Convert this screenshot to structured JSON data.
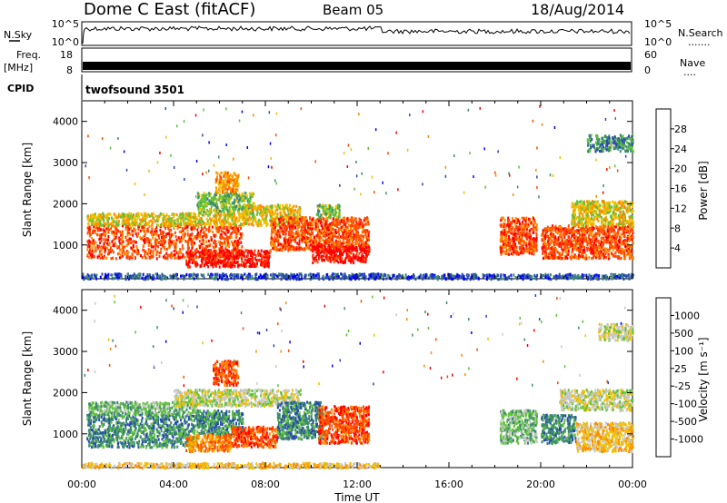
{
  "header": {
    "title": "Dome C East (fitACF)",
    "beam": "Beam 05",
    "date": "18/Aug/2014"
  },
  "noise_panel": {
    "left_label": "N.Sky",
    "right_label": "N.Search",
    "tick_top": "10^5",
    "tick_bottom": "10^0",
    "legend_dots": "......."
  },
  "freq_panel": {
    "left_label_1": "Freq.",
    "left_label_2": "[MHz]",
    "right_label": "Nave",
    "left_ticks": [
      "18",
      "8"
    ],
    "right_ticks": [
      "60",
      "0"
    ],
    "legend_dots": "...."
  },
  "cpid": {
    "label": "CPID",
    "value": "twofsound 3501"
  },
  "chart_data": [
    {
      "type": "heatmap",
      "name": "power",
      "ylabel": "Slant Range [km]",
      "xlabel": "Time UT",
      "x_ticks": [
        "00:00",
        "04:00",
        "08:00",
        "12:00",
        "16:00",
        "20:00",
        "00:00"
      ],
      "x_range_hours": [
        0,
        24
      ],
      "y_ticks": [
        1000,
        2000,
        3000,
        4000
      ],
      "y_range_km": [
        180,
        4500
      ],
      "colorbar": {
        "label": "Power [dB]",
        "ticks": [
          "28",
          "24",
          "20",
          "16",
          "12",
          "8",
          "4"
        ],
        "colors": [
          "#0000ff",
          "#2a4ab0",
          "#3d8a70",
          "#5fc23a",
          "#f0c000",
          "#ff8a00",
          "#ff4a00",
          "#ff0000"
        ]
      },
      "echo_regions": [
        {
          "t0": 0.2,
          "t1": 7.0,
          "r0": 700,
          "r1": 1500,
          "level": 6
        },
        {
          "t0": 0.2,
          "t1": 7.0,
          "r0": 1500,
          "r1": 1800,
          "level": 4
        },
        {
          "t0": 4.5,
          "t1": 8.2,
          "r0": 500,
          "r1": 900,
          "level": 7
        },
        {
          "t0": 5.0,
          "t1": 7.5,
          "r0": 1800,
          "r1": 2300,
          "level": 3
        },
        {
          "t0": 5.8,
          "t1": 6.8,
          "r0": 2300,
          "r1": 2800,
          "level": 5
        },
        {
          "t0": 7.0,
          "t1": 9.5,
          "r0": 1500,
          "r1": 2000,
          "level": 4
        },
        {
          "t0": 8.2,
          "t1": 12.5,
          "r0": 900,
          "r1": 1700,
          "level": 6
        },
        {
          "t0": 10.0,
          "t1": 12.5,
          "r0": 600,
          "r1": 1000,
          "level": 7
        },
        {
          "t0": 10.2,
          "t1": 11.2,
          "r0": 1700,
          "r1": 2000,
          "level": 3
        },
        {
          "t0": 18.2,
          "t1": 19.8,
          "r0": 800,
          "r1": 1700,
          "level": 6
        },
        {
          "t0": 20.0,
          "t1": 24.0,
          "r0": 700,
          "r1": 1500,
          "level": 6
        },
        {
          "t0": 21.3,
          "t1": 24.0,
          "r0": 1500,
          "r1": 2100,
          "level": 4
        },
        {
          "t0": 22.0,
          "t1": 24.0,
          "r0": 3300,
          "r1": 3700,
          "level": 2
        },
        {
          "t0": 0.0,
          "t1": 13.0,
          "r0": 200,
          "r1": 330,
          "level": 1
        },
        {
          "t0": 12.5,
          "t1": 24.0,
          "r0": 200,
          "r1": 320,
          "level": 1
        }
      ]
    },
    {
      "type": "heatmap",
      "name": "velocity",
      "ylabel": "Slant Range [km]",
      "xlabel": "Time UT",
      "x_ticks": [
        "00:00",
        "04:00",
        "08:00",
        "12:00",
        "16:00",
        "20:00",
        "00:00"
      ],
      "x_range_hours": [
        0,
        24
      ],
      "y_ticks": [
        1000,
        2000,
        3000,
        4000
      ],
      "y_range_km": [
        180,
        4500
      ],
      "colorbar": {
        "label": "Velocity [m s⁻¹]",
        "ticks": [
          "1000",
          "500",
          "100",
          "25",
          "-25",
          "-100",
          "-500",
          "-1000"
        ],
        "colors": [
          "#ff0000",
          "#ff4a00",
          "#ff8a00",
          "#f0c000",
          "#c8c8c8",
          "#5fc23a",
          "#3d8a70",
          "#2a4ab0",
          "#0000ff"
        ]
      },
      "echo_regions": [
        {
          "t0": 0.2,
          "t1": 5.0,
          "r0": 700,
          "r1": 1500,
          "level": 6
        },
        {
          "t0": 0.2,
          "t1": 5.0,
          "r0": 1500,
          "r1": 1800,
          "level": 5
        },
        {
          "t0": 5.0,
          "t1": 7.0,
          "r0": 1000,
          "r1": 1600,
          "level": 6
        },
        {
          "t0": 4.5,
          "t1": 6.5,
          "r0": 600,
          "r1": 1000,
          "level": 2
        },
        {
          "t0": 6.5,
          "t1": 8.5,
          "r0": 700,
          "r1": 1200,
          "level": 1
        },
        {
          "t0": 4.0,
          "t1": 9.5,
          "r0": 1700,
          "r1": 2100,
          "level": 4
        },
        {
          "t0": 5.7,
          "t1": 6.8,
          "r0": 2200,
          "r1": 2800,
          "level": 1
        },
        {
          "t0": 8.5,
          "t1": 10.5,
          "r0": 900,
          "r1": 1800,
          "level": 6
        },
        {
          "t0": 10.3,
          "t1": 12.5,
          "r0": 800,
          "r1": 1700,
          "level": 1
        },
        {
          "t0": 18.2,
          "t1": 19.8,
          "r0": 800,
          "r1": 1600,
          "level": 5
        },
        {
          "t0": 20.0,
          "t1": 21.5,
          "r0": 800,
          "r1": 1500,
          "level": 6
        },
        {
          "t0": 21.5,
          "t1": 24.0,
          "r0": 600,
          "r1": 1300,
          "level": 3
        },
        {
          "t0": 20.8,
          "t1": 24.0,
          "r0": 1600,
          "r1": 2100,
          "level": 4
        },
        {
          "t0": 22.5,
          "t1": 24.0,
          "r0": 3300,
          "r1": 3700,
          "level": 4
        },
        {
          "t0": 0.0,
          "t1": 13.0,
          "r0": 200,
          "r1": 320,
          "level": 3
        }
      ]
    }
  ]
}
